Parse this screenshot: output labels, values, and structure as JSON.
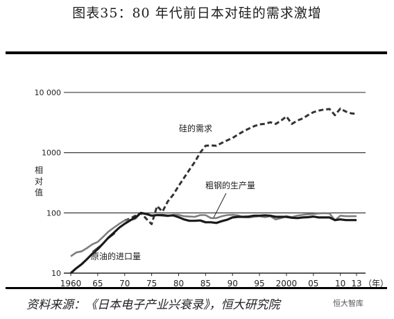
{
  "header": {
    "title": "图表35：80 年代前日本对硅的需求激增"
  },
  "footer": {
    "source": "资料来源：《日本电子产业兴衰录》，恒大研究院",
    "watermark": "恒大智库"
  },
  "chart_data": {
    "type": "line",
    "y_scale": "log",
    "ylim": [
      10,
      10000
    ],
    "xlim": [
      1960,
      2013
    ],
    "ylabel": "相对值",
    "x_unit_label": "（年）",
    "x_tick_labels": [
      "1960",
      "65",
      "70",
      "75",
      "80",
      "85",
      "90",
      "95",
      "2000",
      "05",
      "10",
      "13"
    ],
    "x_tick_values": [
      1960,
      1965,
      1970,
      1975,
      1980,
      1985,
      1990,
      1995,
      2000,
      2005,
      2010,
      2013
    ],
    "y_tick_labels": [
      "10",
      "100",
      "1000",
      "10 000"
    ],
    "y_tick_values": [
      10,
      100,
      1000,
      10000
    ],
    "grid": "horizontal",
    "series": [
      {
        "name": "硅的需求",
        "style": "dashed",
        "color": "#333333",
        "x": [
          1970,
          1971,
          1972,
          1973,
          1974,
          1975,
          1976,
          1977,
          1978,
          1979,
          1980,
          1981,
          1982,
          1983,
          1984,
          1985,
          1986,
          1987,
          1988,
          1989,
          1990,
          1991,
          1992,
          1993,
          1994,
          1995,
          1996,
          1997,
          1998,
          1999,
          2000,
          2001,
          2002,
          2003,
          2004,
          2005,
          2006,
          2007,
          2008,
          2009,
          2010,
          2011,
          2012,
          2013
        ],
        "y": [
          75,
          80,
          90,
          100,
          80,
          65,
          130,
          105,
          155,
          200,
          280,
          380,
          520,
          700,
          1000,
          1300,
          1320,
          1300,
          1450,
          1600,
          1750,
          2000,
          2250,
          2500,
          2750,
          2950,
          3000,
          3200,
          3000,
          3400,
          4000,
          3000,
          3400,
          3700,
          4200,
          4700,
          5000,
          5200,
          5300,
          4200,
          5400,
          4800,
          4500,
          4400
        ]
      },
      {
        "name": "粗钢的生产量",
        "style": "solid",
        "color": "#7d7d7d",
        "x": [
          1960,
          1961,
          1962,
          1963,
          1964,
          1965,
          1966,
          1967,
          1968,
          1969,
          1970,
          1971,
          1972,
          1973,
          1974,
          1975,
          1976,
          1977,
          1978,
          1979,
          1980,
          1981,
          1982,
          1983,
          1984,
          1985,
          1986,
          1987,
          1988,
          1989,
          1990,
          1991,
          1992,
          1993,
          1994,
          1995,
          1996,
          1997,
          1998,
          1999,
          2000,
          2001,
          2002,
          2003,
          2004,
          2005,
          2006,
          2007,
          2008,
          2009,
          2010,
          2011,
          2012,
          2013
        ],
        "y": [
          19,
          22,
          23,
          26,
          30,
          33,
          40,
          49,
          57,
          66,
          75,
          76,
          80,
          100,
          98,
          90,
          92,
          90,
          88,
          93,
          93,
          88,
          87,
          86,
          92,
          92,
          82,
          82,
          88,
          92,
          93,
          91,
          85,
          84,
          86,
          88,
          85,
          88,
          78,
          82,
          88,
          85,
          90,
          93,
          95,
          96,
          98,
          99,
          98,
          75,
          90,
          88,
          88,
          88
        ]
      },
      {
        "name": "原油的进口量",
        "style": "solid",
        "color": "#1a1a1a",
        "x": [
          1960,
          1961,
          1962,
          1963,
          1964,
          1965,
          1966,
          1967,
          1968,
          1969,
          1970,
          1971,
          1972,
          1973,
          1974,
          1975,
          1976,
          1977,
          1978,
          1979,
          1980,
          1981,
          1982,
          1983,
          1984,
          1985,
          1986,
          1987,
          1988,
          1989,
          1990,
          1991,
          1992,
          1993,
          1994,
          1995,
          1996,
          1997,
          1998,
          1999,
          2000,
          2001,
          2002,
          2003,
          2004,
          2005,
          2006,
          2007,
          2008,
          2009,
          2010,
          2011,
          2012,
          2013
        ],
        "y": [
          10,
          12,
          14,
          17,
          21,
          25,
          31,
          39,
          47,
          57,
          66,
          75,
          84,
          100,
          96,
          90,
          92,
          92,
          90,
          91,
          85,
          78,
          74,
          74,
          75,
          70,
          70,
          68,
          73,
          77,
          84,
          86,
          86,
          87,
          90,
          90,
          91,
          90,
          86,
          86,
          86,
          83,
          82,
          84,
          85,
          87,
          84,
          84,
          84,
          76,
          78,
          76,
          76,
          76
        ]
      }
    ],
    "annotations": [
      {
        "text": "硅的需求"
      },
      {
        "text": "粗钢的生产量"
      },
      {
        "text": "原油的进口量"
      }
    ]
  }
}
